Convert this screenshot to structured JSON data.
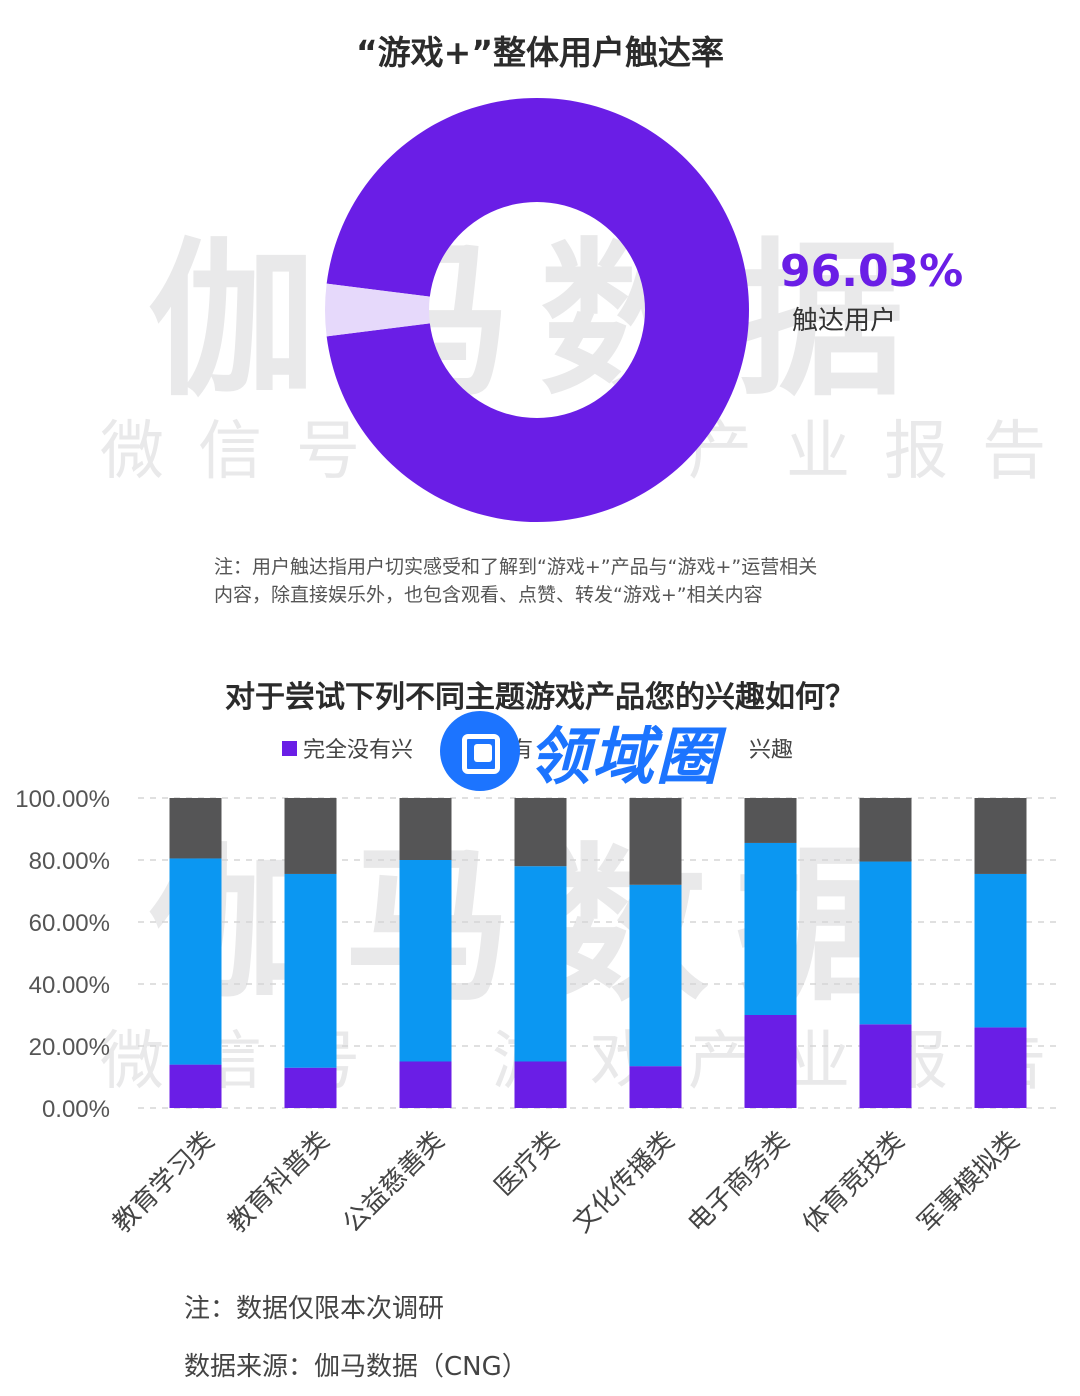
{
  "chart_data": [
    {
      "type": "pie",
      "title": "“游戏+”整体用户触达率",
      "slices": [
        {
          "name": "触达用户",
          "value": 96.03,
          "color": "#6a1ee6"
        },
        {
          "name": "",
          "value": 3.97,
          "color": "#e6d9fb"
        }
      ],
      "highlight_value": "96.03%",
      "highlight_label": "触达用户",
      "note": [
        "注：用户触达指用户切实感受和了解到“游戏+”产品与“游戏+”运营相关",
        "内容，除直接娱乐外，也包含观看、点赞、转发“游戏+”相关内容"
      ]
    },
    {
      "type": "bar",
      "stacked": true,
      "title": "对于尝试下列不同主题游戏产品您的兴趣如何？",
      "categories": [
        "教育学习类",
        "教育科普类",
        "公益慈善类",
        "医疗类",
        "文化传播类",
        "电子商务类",
        "体育竞技类",
        "军事模拟类"
      ],
      "series": [
        {
          "name": "完全没有兴趣",
          "color": "#6a1ee6",
          "values": [
            14,
            13,
            15,
            15,
            13.5,
            30,
            27,
            26
          ]
        },
        {
          "name": "",
          "color": "#0b97f2",
          "values": [
            66.5,
            62.5,
            65,
            63,
            58.5,
            55.5,
            52.5,
            49.5
          ]
        },
        {
          "name": "",
          "color": "#555556",
          "values": [
            19.5,
            24.5,
            20,
            22,
            28,
            14.5,
            20.5,
            24.5
          ]
        }
      ],
      "legend_visible": [
        "完全没有兴",
        "有",
        "兴趣"
      ],
      "ylim": [
        0,
        100
      ],
      "yticks": [
        "0.00%",
        "20.00%",
        "40.00%",
        "60.00%",
        "80.00%",
        "100.00%"
      ],
      "grid": true,
      "legend_position": "top-center"
    }
  ],
  "watermark": {
    "big": "伽马数据",
    "small": "微信号：游戏产业报告"
  },
  "logo_text": "领域圈",
  "note2": "注：数据仅限本次调研",
  "source": "数据来源：伽马数据（CNG）"
}
